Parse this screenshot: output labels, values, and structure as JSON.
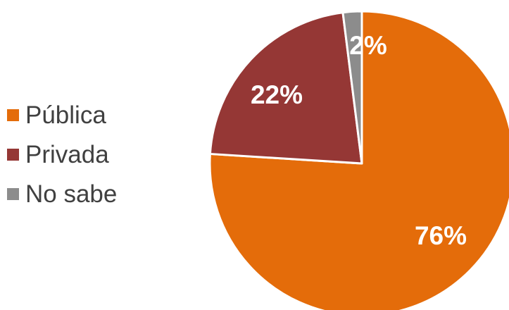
{
  "chart_data": {
    "type": "pie",
    "categories": [
      "Pública",
      "Privada",
      "No sabe"
    ],
    "values": [
      76,
      22,
      2
    ],
    "data_labels": [
      "76%",
      "22%",
      "2%"
    ],
    "colors": [
      "#E46C0A",
      "#953735",
      "#8C8C8C"
    ],
    "legend_placement": "left",
    "start_angle": "12 o'clock, clockwise"
  }
}
